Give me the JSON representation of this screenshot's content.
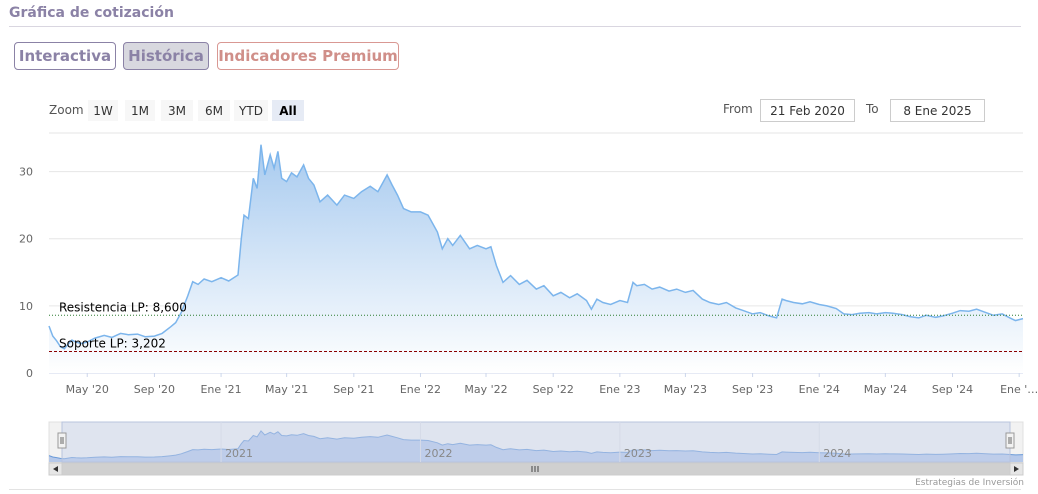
{
  "header": {
    "title": "Gráfica de cotización"
  },
  "tabs": [
    {
      "label": "Interactiva"
    },
    {
      "label": "Histórica"
    },
    {
      "label": "Indicadores Premium"
    }
  ],
  "zoom": {
    "label": "Zoom",
    "buttons": [
      "1W",
      "1M",
      "3M",
      "6M",
      "YTD",
      "All"
    ],
    "active": "All"
  },
  "range": {
    "from_label": "From",
    "from_value": "21 Feb 2020",
    "to_label": "To",
    "to_value": "8 Ene 2025"
  },
  "credit": "Estrategias de Inversión",
  "colors": {
    "line": "#7cb5ec",
    "area_top": "#a7caef",
    "area_bottom": "#ffffff",
    "resistance": "#2e7d32",
    "support": "#8b0000",
    "navigator_fill": "#c7d3ec"
  },
  "chart_data": {
    "type": "area",
    "y_ticks": [
      0,
      10,
      20,
      30
    ],
    "ylim": [
      0,
      35
    ],
    "x_range": [
      "2020-02-21",
      "2025-01-08"
    ],
    "x_tick_labels": [
      {
        "date": "2020-05-01",
        "label": "May '20"
      },
      {
        "date": "2020-09-01",
        "label": "Sep '20"
      },
      {
        "date": "2021-01-01",
        "label": "Ene '21"
      },
      {
        "date": "2021-05-01",
        "label": "May '21"
      },
      {
        "date": "2021-09-01",
        "label": "Sep '21"
      },
      {
        "date": "2022-01-01",
        "label": "Ene '22"
      },
      {
        "date": "2022-05-01",
        "label": "May '22"
      },
      {
        "date": "2022-09-01",
        "label": "Sep '22"
      },
      {
        "date": "2023-01-01",
        "label": "Ene '23"
      },
      {
        "date": "2023-05-01",
        "label": "May '23"
      },
      {
        "date": "2023-09-01",
        "label": "Sep '23"
      },
      {
        "date": "2024-01-01",
        "label": "Ene '24"
      },
      {
        "date": "2024-05-01",
        "label": "May '24"
      },
      {
        "date": "2024-09-01",
        "label": "Sep '24"
      },
      {
        "date": "2025-01-01",
        "label": "Ene '…"
      }
    ],
    "plot_lines": [
      {
        "label": "Resistencia LP: 8,600",
        "value": 8.6,
        "style": "dotted",
        "color": "#2e7d32"
      },
      {
        "label": "Soporte LP: 3,202",
        "value": 3.202,
        "style": "dashed",
        "color": "#8b0000"
      }
    ],
    "navigator_year_labels": [
      {
        "date": "2021-01-01",
        "label": "2021"
      },
      {
        "date": "2022-01-01",
        "label": "2022"
      },
      {
        "date": "2023-01-01",
        "label": "2023"
      },
      {
        "date": "2024-01-01",
        "label": "2024"
      }
    ],
    "series": [
      {
        "points": [
          [
            "2020-02-21",
            7.0
          ],
          [
            "2020-02-28",
            5.5
          ],
          [
            "2020-03-06",
            4.8
          ],
          [
            "2020-03-13",
            3.9
          ],
          [
            "2020-03-20",
            3.6
          ],
          [
            "2020-03-27",
            4.3
          ],
          [
            "2020-04-03",
            4.9
          ],
          [
            "2020-04-10",
            4.6
          ],
          [
            "2020-04-20",
            4.4
          ],
          [
            "2020-05-01",
            4.6
          ],
          [
            "2020-05-15",
            5.2
          ],
          [
            "2020-06-01",
            5.6
          ],
          [
            "2020-06-15",
            5.3
          ],
          [
            "2020-07-01",
            5.9
          ],
          [
            "2020-07-15",
            5.7
          ],
          [
            "2020-08-01",
            5.8
          ],
          [
            "2020-08-15",
            5.4
          ],
          [
            "2020-09-01",
            5.5
          ],
          [
            "2020-09-15",
            5.9
          ],
          [
            "2020-10-01",
            6.9
          ],
          [
            "2020-10-10",
            7.5
          ],
          [
            "2020-10-20",
            9.0
          ],
          [
            "2020-11-01",
            11.5
          ],
          [
            "2020-11-10",
            13.6
          ],
          [
            "2020-11-20",
            13.2
          ],
          [
            "2020-12-01",
            14.0
          ],
          [
            "2020-12-15",
            13.6
          ],
          [
            "2021-01-01",
            14.2
          ],
          [
            "2021-01-15",
            13.7
          ],
          [
            "2021-02-01",
            14.6
          ],
          [
            "2021-02-07",
            20.0
          ],
          [
            "2021-02-12",
            23.5
          ],
          [
            "2021-02-20",
            23.0
          ],
          [
            "2021-03-01",
            29.0
          ],
          [
            "2021-03-08",
            27.5
          ],
          [
            "2021-03-15",
            34.0
          ],
          [
            "2021-03-22",
            29.5
          ],
          [
            "2021-04-01",
            32.5
          ],
          [
            "2021-04-08",
            30.5
          ],
          [
            "2021-04-15",
            33.0
          ],
          [
            "2021-04-22",
            29.0
          ],
          [
            "2021-05-01",
            28.5
          ],
          [
            "2021-05-10",
            29.8
          ],
          [
            "2021-05-20",
            29.2
          ],
          [
            "2021-06-01",
            31.0
          ],
          [
            "2021-06-10",
            29.0
          ],
          [
            "2021-06-20",
            28.0
          ],
          [
            "2021-07-01",
            25.5
          ],
          [
            "2021-07-15",
            26.5
          ],
          [
            "2021-08-01",
            25.0
          ],
          [
            "2021-08-15",
            26.5
          ],
          [
            "2021-09-01",
            26.0
          ],
          [
            "2021-09-15",
            27.0
          ],
          [
            "2021-10-01",
            27.8
          ],
          [
            "2021-10-15",
            27.0
          ],
          [
            "2021-11-01",
            29.5
          ],
          [
            "2021-11-10",
            28.0
          ],
          [
            "2021-11-20",
            26.5
          ],
          [
            "2021-12-01",
            24.5
          ],
          [
            "2021-12-15",
            24.0
          ],
          [
            "2022-01-01",
            24.0
          ],
          [
            "2022-01-15",
            23.5
          ],
          [
            "2022-02-01",
            21.0
          ],
          [
            "2022-02-10",
            18.5
          ],
          [
            "2022-02-20",
            20.0
          ],
          [
            "2022-03-01",
            19.0
          ],
          [
            "2022-03-15",
            20.5
          ],
          [
            "2022-04-01",
            18.5
          ],
          [
            "2022-04-15",
            19.0
          ],
          [
            "2022-05-01",
            18.5
          ],
          [
            "2022-05-10",
            18.8
          ],
          [
            "2022-05-20",
            16.0
          ],
          [
            "2022-06-01",
            13.5
          ],
          [
            "2022-06-15",
            14.5
          ],
          [
            "2022-07-01",
            13.2
          ],
          [
            "2022-07-15",
            13.8
          ],
          [
            "2022-08-01",
            12.5
          ],
          [
            "2022-08-15",
            13.0
          ],
          [
            "2022-09-01",
            11.5
          ],
          [
            "2022-09-15",
            12.0
          ],
          [
            "2022-10-01",
            11.2
          ],
          [
            "2022-10-15",
            11.8
          ],
          [
            "2022-11-01",
            10.8
          ],
          [
            "2022-11-10",
            9.5
          ],
          [
            "2022-11-20",
            11.0
          ],
          [
            "2022-12-01",
            10.5
          ],
          [
            "2022-12-15",
            10.2
          ],
          [
            "2023-01-01",
            10.8
          ],
          [
            "2023-01-15",
            10.5
          ],
          [
            "2023-01-25",
            13.5
          ],
          [
            "2023-02-01",
            13.0
          ],
          [
            "2023-02-15",
            13.2
          ],
          [
            "2023-03-01",
            12.5
          ],
          [
            "2023-03-15",
            12.8
          ],
          [
            "2023-04-01",
            12.2
          ],
          [
            "2023-04-15",
            12.5
          ],
          [
            "2023-05-01",
            12.0
          ],
          [
            "2023-05-15",
            12.3
          ],
          [
            "2023-06-01",
            11.0
          ],
          [
            "2023-06-15",
            10.5
          ],
          [
            "2023-07-01",
            10.2
          ],
          [
            "2023-07-15",
            10.5
          ],
          [
            "2023-08-01",
            9.7
          ],
          [
            "2023-08-15",
            9.3
          ],
          [
            "2023-09-01",
            8.8
          ],
          [
            "2023-09-15",
            9.0
          ],
          [
            "2023-10-01",
            8.5
          ],
          [
            "2023-10-15",
            8.2
          ],
          [
            "2023-10-25",
            11.0
          ],
          [
            "2023-11-01",
            10.8
          ],
          [
            "2023-11-15",
            10.5
          ],
          [
            "2023-12-01",
            10.3
          ],
          [
            "2023-12-15",
            10.6
          ],
          [
            "2024-01-01",
            10.2
          ],
          [
            "2024-01-15",
            10.0
          ],
          [
            "2024-02-01",
            9.6
          ],
          [
            "2024-02-15",
            8.8
          ],
          [
            "2024-03-01",
            8.7
          ],
          [
            "2024-03-15",
            8.9
          ],
          [
            "2024-04-01",
            9.0
          ],
          [
            "2024-04-15",
            8.8
          ],
          [
            "2024-05-01",
            9.0
          ],
          [
            "2024-05-15",
            8.9
          ],
          [
            "2024-06-01",
            8.7
          ],
          [
            "2024-06-15",
            8.4
          ],
          [
            "2024-07-01",
            8.2
          ],
          [
            "2024-07-15",
            8.6
          ],
          [
            "2024-08-01",
            8.3
          ],
          [
            "2024-08-15",
            8.5
          ],
          [
            "2024-09-01",
            8.9
          ],
          [
            "2024-09-15",
            9.3
          ],
          [
            "2024-10-01",
            9.2
          ],
          [
            "2024-10-15",
            9.5
          ],
          [
            "2024-11-01",
            9.0
          ],
          [
            "2024-11-15",
            8.6
          ],
          [
            "2024-12-01",
            8.8
          ],
          [
            "2024-12-15",
            8.2
          ],
          [
            "2024-12-25",
            7.8
          ],
          [
            "2025-01-08",
            8.1
          ]
        ]
      }
    ]
  }
}
